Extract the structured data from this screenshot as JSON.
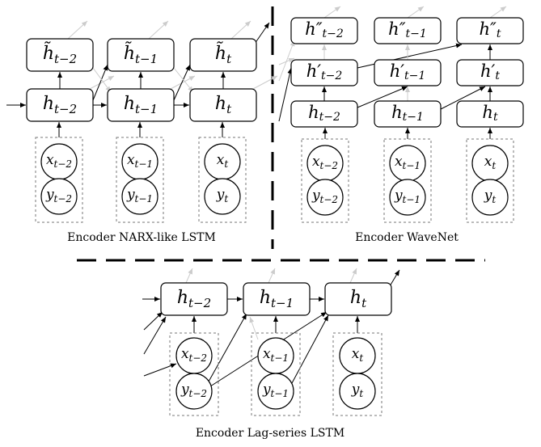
{
  "panels": {
    "narx": {
      "caption": "Encoder NARX-like LSTM",
      "hidden_labels": [
        "h_{t−2}",
        "h_{t−1}",
        "h_t"
      ],
      "tilde_labels": [
        "h̃_{t−2}",
        "h̃_{t−1}",
        "h̃_t"
      ],
      "x_labels": [
        "x_{t−2}",
        "x_{t−1}",
        "x_t"
      ],
      "y_labels": [
        "y_{t−2}",
        "y_{t−1}",
        "y_t"
      ]
    },
    "wavenet": {
      "caption": "Encoder WaveNet",
      "layer0_labels": [
        "h_{t−2}",
        "h_{t−1}",
        "h_t"
      ],
      "layer1_labels": [
        "h′_{t−2}",
        "h′_{t−1}",
        "h′_t"
      ],
      "layer2_labels": [
        "h″_{t−2}",
        "h″_{t−1}",
        "h″_t"
      ],
      "x_labels": [
        "x_{t−2}",
        "x_{t−1}",
        "x_t"
      ],
      "y_labels": [
        "y_{t−2}",
        "y_{t−1}",
        "y_t"
      ]
    },
    "lag": {
      "caption": "Encoder Lag-series LSTM",
      "hidden_labels": [
        "h_{t−2}",
        "h_{t−1}",
        "h_t"
      ],
      "x_labels": [
        "x_{t−2}",
        "x_{t−1}",
        "x_t"
      ],
      "y_labels": [
        "y_{t−2}",
        "y_{t−1}",
        "y_t"
      ]
    }
  },
  "colors": {
    "stroke": "#000000",
    "light_arrow": "#cccccc",
    "dashed_box": "#777777"
  }
}
